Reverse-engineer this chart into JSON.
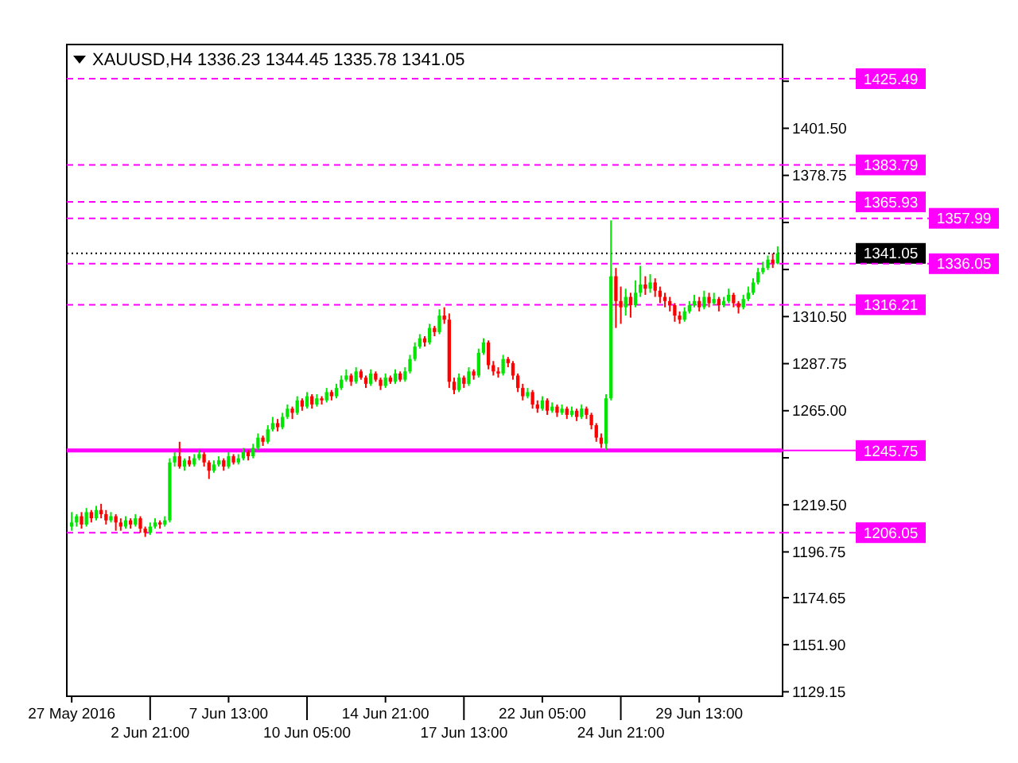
{
  "chart_data": {
    "type": "candlestick",
    "title": "XAUUSD,H4  1336.23 1344.45 1335.78 1341.05",
    "categories": [
      "27 May 2016",
      null,
      null,
      null,
      null,
      null,
      null,
      null,
      null,
      null,
      null,
      null,
      null,
      null,
      null,
      null,
      "2 Jun 21:00",
      null,
      null,
      null,
      null,
      null,
      null,
      null,
      null,
      null,
      null,
      null,
      null,
      null,
      null,
      null,
      "7 Jun 13:00",
      null,
      null,
      null,
      null,
      null,
      null,
      null,
      null,
      null,
      null,
      null,
      null,
      null,
      null,
      null,
      "10 Jun 05:00",
      null,
      null,
      null,
      null,
      null,
      null,
      null,
      null,
      null,
      null,
      null,
      null,
      null,
      null,
      null,
      "14 Jun 21:00",
      null,
      null,
      null,
      null,
      null,
      null,
      null,
      null,
      null,
      null,
      null,
      null,
      null,
      null,
      null,
      "17 Jun 13:00",
      null,
      null,
      null,
      null,
      null,
      null,
      null,
      null,
      null,
      null,
      null,
      null,
      null,
      null,
      null,
      "22 Jun 05:00",
      null,
      null,
      null,
      null,
      null,
      null,
      null,
      null,
      null,
      null,
      null,
      null,
      null,
      null,
      null,
      "24 Jun 21:00",
      null,
      null,
      null,
      null,
      null,
      null,
      null,
      null,
      null,
      null,
      null,
      null,
      null,
      null,
      null,
      "29 Jun 13:00",
      null,
      null,
      null,
      null,
      null,
      null,
      null,
      null,
      null,
      null,
      null,
      null,
      null,
      null,
      null,
      null
    ],
    "ohlc": [
      [
        1209,
        1216,
        1207,
        1211
      ],
      [
        1211,
        1215,
        1209,
        1214
      ],
      [
        1214,
        1216,
        1208,
        1210
      ],
      [
        1210,
        1218,
        1209,
        1216
      ],
      [
        1216,
        1217,
        1211,
        1213
      ],
      [
        1213,
        1219,
        1212,
        1217
      ],
      [
        1217,
        1220,
        1213,
        1215
      ],
      [
        1215,
        1217,
        1210,
        1212
      ],
      [
        1212,
        1216,
        1211,
        1214
      ],
      [
        1214,
        1215,
        1207,
        1211
      ],
      [
        1211,
        1213,
        1207,
        1209
      ],
      [
        1209,
        1214,
        1208,
        1212
      ],
      [
        1212,
        1213,
        1208,
        1210
      ],
      [
        1210,
        1215,
        1209,
        1213
      ],
      [
        1213,
        1214,
        1206,
        1208
      ],
      [
        1208,
        1209,
        1204,
        1206
      ],
      [
        1206,
        1211,
        1205,
        1209
      ],
      [
        1209,
        1213,
        1208,
        1211
      ],
      [
        1211,
        1212,
        1208,
        1210
      ],
      [
        1210,
        1214,
        1209,
        1212
      ],
      [
        1212,
        1242,
        1211,
        1240
      ],
      [
        1240,
        1245,
        1238,
        1243
      ],
      [
        1243,
        1250,
        1237,
        1238
      ],
      [
        1238,
        1242,
        1236,
        1241
      ],
      [
        1241,
        1243,
        1238,
        1239
      ],
      [
        1239,
        1244,
        1238,
        1242
      ],
      [
        1242,
        1246,
        1241,
        1244
      ],
      [
        1244,
        1245,
        1238,
        1240
      ],
      [
        1240,
        1241,
        1232,
        1236
      ],
      [
        1236,
        1241,
        1235,
        1239
      ],
      [
        1239,
        1243,
        1238,
        1241
      ],
      [
        1241,
        1242,
        1236,
        1238
      ],
      [
        1238,
        1245,
        1237,
        1243
      ],
      [
        1243,
        1244,
        1239,
        1240
      ],
      [
        1240,
        1244,
        1239,
        1242
      ],
      [
        1242,
        1247,
        1241,
        1245
      ],
      [
        1245,
        1246,
        1241,
        1243
      ],
      [
        1243,
        1249,
        1242,
        1247
      ],
      [
        1247,
        1254,
        1246,
        1252
      ],
      [
        1252,
        1253,
        1248,
        1250
      ],
      [
        1250,
        1258,
        1249,
        1256
      ],
      [
        1256,
        1262,
        1255,
        1259
      ],
      [
        1259,
        1261,
        1255,
        1257
      ],
      [
        1257,
        1264,
        1256,
        1262
      ],
      [
        1262,
        1268,
        1261,
        1266
      ],
      [
        1266,
        1267,
        1261,
        1264
      ],
      [
        1264,
        1272,
        1263,
        1270
      ],
      [
        1270,
        1271,
        1265,
        1267
      ],
      [
        1267,
        1274,
        1266,
        1272
      ],
      [
        1272,
        1273,
        1266,
        1268
      ],
      [
        1268,
        1273,
        1267,
        1271
      ],
      [
        1271,
        1272,
        1268,
        1270
      ],
      [
        1270,
        1276,
        1269,
        1274
      ],
      [
        1274,
        1275,
        1270,
        1272
      ],
      [
        1272,
        1278,
        1271,
        1276
      ],
      [
        1276,
        1282,
        1275,
        1280
      ],
      [
        1280,
        1285,
        1279,
        1282
      ],
      [
        1282,
        1283,
        1277,
        1279
      ],
      [
        1279,
        1286,
        1278,
        1284
      ],
      [
        1284,
        1285,
        1280,
        1281
      ],
      [
        1281,
        1282,
        1276,
        1278
      ],
      [
        1278,
        1285,
        1277,
        1283
      ],
      [
        1283,
        1284,
        1279,
        1280
      ],
      [
        1280,
        1281,
        1275,
        1277
      ],
      [
        1277,
        1283,
        1276,
        1281
      ],
      [
        1281,
        1282,
        1278,
        1279
      ],
      [
        1279,
        1285,
        1278,
        1283
      ],
      [
        1283,
        1284,
        1279,
        1280
      ],
      [
        1280,
        1286,
        1279,
        1284
      ],
      [
        1284,
        1292,
        1283,
        1290
      ],
      [
        1290,
        1298,
        1289,
        1296
      ],
      [
        1296,
        1302,
        1295,
        1300
      ],
      [
        1300,
        1301,
        1296,
        1298
      ],
      [
        1298,
        1307,
        1297,
        1305
      ],
      [
        1305,
        1306,
        1301,
        1303
      ],
      [
        1303,
        1314,
        1302,
        1311
      ],
      [
        1311,
        1315,
        1307,
        1309
      ],
      [
        1309,
        1312,
        1276,
        1279
      ],
      [
        1279,
        1281,
        1273,
        1275
      ],
      [
        1275,
        1283,
        1274,
        1281
      ],
      [
        1281,
        1282,
        1276,
        1278
      ],
      [
        1278,
        1286,
        1277,
        1284
      ],
      [
        1284,
        1285,
        1280,
        1282
      ],
      [
        1282,
        1295,
        1281,
        1293
      ],
      [
        1293,
        1300,
        1292,
        1298
      ],
      [
        1298,
        1299,
        1285,
        1287
      ],
      [
        1287,
        1289,
        1282,
        1284
      ],
      [
        1284,
        1286,
        1281,
        1283
      ],
      [
        1283,
        1292,
        1282,
        1290
      ],
      [
        1290,
        1291,
        1286,
        1288
      ],
      [
        1288,
        1289,
        1280,
        1282
      ],
      [
        1282,
        1283,
        1274,
        1276
      ],
      [
        1276,
        1278,
        1270,
        1272
      ],
      [
        1272,
        1276,
        1271,
        1274
      ],
      [
        1274,
        1275,
        1266,
        1268
      ],
      [
        1268,
        1270,
        1264,
        1266
      ],
      [
        1266,
        1272,
        1265,
        1270
      ],
      [
        1270,
        1271,
        1263,
        1265
      ],
      [
        1265,
        1269,
        1264,
        1267
      ],
      [
        1267,
        1268,
        1262,
        1264
      ],
      [
        1264,
        1268,
        1263,
        1266
      ],
      [
        1266,
        1267,
        1261,
        1263
      ],
      [
        1263,
        1267,
        1262,
        1265
      ],
      [
        1265,
        1266,
        1260,
        1262
      ],
      [
        1262,
        1268,
        1261,
        1266
      ],
      [
        1266,
        1267,
        1261,
        1263
      ],
      [
        1263,
        1264,
        1256,
        1258
      ],
      [
        1258,
        1259,
        1250,
        1252
      ],
      [
        1252,
        1254,
        1247,
        1249
      ],
      [
        1249,
        1273,
        1246,
        1271
      ],
      [
        1271,
        1357,
        1270,
        1330
      ],
      [
        1330,
        1334,
        1305,
        1318
      ],
      [
        1318,
        1325,
        1307,
        1315
      ],
      [
        1315,
        1324,
        1311,
        1320
      ],
      [
        1320,
        1322,
        1310,
        1316
      ],
      [
        1316,
        1328,
        1315,
        1322
      ],
      [
        1322,
        1335,
        1320,
        1326
      ],
      [
        1326,
        1330,
        1321,
        1324
      ],
      [
        1324,
        1331,
        1322,
        1327
      ],
      [
        1327,
        1329,
        1320,
        1323
      ],
      [
        1323,
        1325,
        1317,
        1320
      ],
      [
        1320,
        1322,
        1315,
        1318
      ],
      [
        1318,
        1320,
        1313,
        1316
      ],
      [
        1316,
        1317,
        1308,
        1311
      ],
      [
        1311,
        1313,
        1307,
        1309
      ],
      [
        1309,
        1315,
        1308,
        1313
      ],
      [
        1313,
        1318,
        1312,
        1316
      ],
      [
        1316,
        1321,
        1315,
        1318
      ],
      [
        1318,
        1320,
        1313,
        1315
      ],
      [
        1315,
        1323,
        1314,
        1320
      ],
      [
        1320,
        1322,
        1315,
        1317
      ],
      [
        1317,
        1322,
        1316,
        1319
      ],
      [
        1319,
        1320,
        1313,
        1316
      ],
      [
        1316,
        1320,
        1315,
        1318
      ],
      [
        1318,
        1324,
        1317,
        1321
      ],
      [
        1321,
        1322,
        1315,
        1317
      ],
      [
        1317,
        1318,
        1312,
        1315
      ],
      [
        1315,
        1321,
        1314,
        1319
      ],
      [
        1319,
        1325,
        1318,
        1322
      ],
      [
        1322,
        1329,
        1321,
        1327
      ],
      [
        1327,
        1334,
        1326,
        1332
      ],
      [
        1332,
        1337,
        1331,
        1334
      ],
      [
        1334,
        1340,
        1333,
        1338
      ],
      [
        1338,
        1341,
        1334,
        1336.23
      ],
      [
        1336.23,
        1344.45,
        1335.78,
        1341.05
      ]
    ],
    "ylim": [
      1127,
      1442
    ],
    "yticks": [
      1129.15,
      {
        "value": 1151.9,
        "label": "1151.90"
      },
      1174.65,
      1196.75,
      {
        "value": 1219.5,
        "label": "1219.50"
      },
      {
        "value": 1242.25,
        "label": null
      },
      {
        "value": 1265,
        "label": "1265.00"
      },
      1287.75,
      {
        "value": 1310.5,
        "label": "1310.50"
      },
      {
        "value": 1333.25,
        "label": null
      },
      {
        "value": 1356,
        "label": null
      },
      1378.75,
      {
        "value": 1401.5,
        "label": "1401.50"
      },
      {
        "value": 1424.25,
        "label": null
      }
    ],
    "ref_lines": [
      {
        "axis": "y",
        "value": 1425.49,
        "label": "1425.49",
        "color": "#ff00ff",
        "line_style": "dashed"
      },
      {
        "axis": "y",
        "value": 1383.79,
        "label": "1383.79",
        "color": "#ff00ff",
        "line_style": "dashed"
      },
      {
        "axis": "y",
        "value": 1365.93,
        "label": "1365.93",
        "color": "#ff00ff",
        "line_style": "dashed"
      },
      {
        "axis": "y",
        "value": 1357.99,
        "label": "1357.99",
        "color": "#ff00ff",
        "line_style": "dashed"
      },
      {
        "axis": "y",
        "value": 1341.05,
        "label": "1341.05",
        "color": "#000000",
        "line_style": "dotted"
      },
      {
        "axis": "y",
        "value": 1336.05,
        "label": "1336.05",
        "color": "#ff00ff",
        "line_style": "dashed"
      },
      {
        "axis": "y",
        "value": 1316.21,
        "label": "1316.21",
        "color": "#ff00ff",
        "line_style": "dashed"
      },
      {
        "axis": "y",
        "value": 1245.75,
        "label": "1245.75",
        "color": "#ff00ff",
        "line_style": "solid"
      },
      {
        "axis": "y",
        "value": 1206.05,
        "label": "1206.05",
        "color": "#ff00ff",
        "line_style": "dashed"
      }
    ]
  }
}
